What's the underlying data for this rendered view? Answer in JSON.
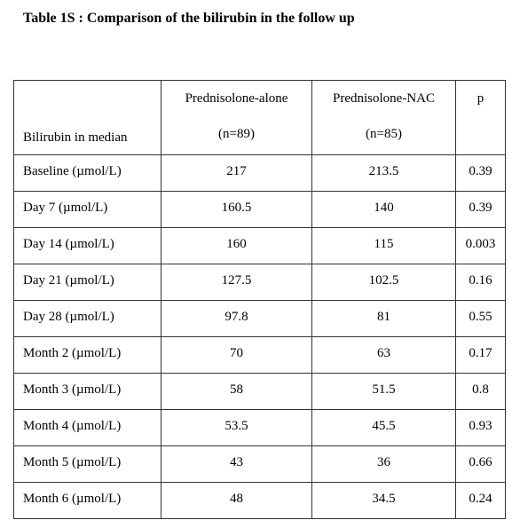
{
  "title": "Table 1S : Comparison of the bilirubin in the follow up",
  "table": {
    "header": {
      "row_label": "Bilirubin in median",
      "col1_name": "Prednisolone-alone",
      "col1_n": "(n=89)",
      "col2_name": "Prednisolone-NAC",
      "col2_n": "(n=85)",
      "col3_name": "p"
    },
    "rows": [
      {
        "label": "Baseline (µmol/L)",
        "alone": "217",
        "nac": "213.5",
        "p": "0.39"
      },
      {
        "label": "Day 7 (µmol/L)",
        "alone": "160.5",
        "nac": "140",
        "p": "0.39"
      },
      {
        "label": "Day 14 (µmol/L)",
        "alone": "160",
        "nac": "115",
        "p": "0.003"
      },
      {
        "label": "Day 21 (µmol/L)",
        "alone": "127.5",
        "nac": "102.5",
        "p": "0.16"
      },
      {
        "label": "Day 28 (µmol/L)",
        "alone": "97.8",
        "nac": "81",
        "p": "0.55"
      },
      {
        "label": "Month 2 (µmol/L)",
        "alone": "70",
        "nac": "63",
        "p": "0.17"
      },
      {
        "label": "Month 3 (µmol/L)",
        "alone": "58",
        "nac": "51.5",
        "p": "0.8"
      },
      {
        "label": "Month 4 (µmol/L)",
        "alone": "53.5",
        "nac": "45.5",
        "p": "0.93"
      },
      {
        "label": "Month 5 (µmol/L)",
        "alone": "43",
        "nac": "36",
        "p": "0.66"
      },
      {
        "label": "Month 6 (µmol/L)",
        "alone": "48",
        "nac": "34.5",
        "p": "0.24"
      }
    ]
  }
}
